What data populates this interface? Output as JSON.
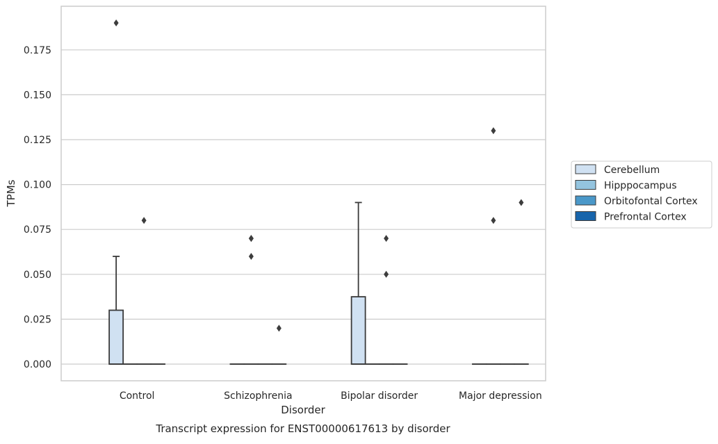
{
  "chart_data": {
    "type": "box",
    "title": "",
    "caption": "Transcript expression for ENST00000617613 by disorder",
    "xlabel": "Disorder",
    "ylabel": "TPMs",
    "ylim": [
      -0.0095,
      0.199
    ],
    "yticks": [
      "0.000",
      "0.025",
      "0.050",
      "0.075",
      "0.100",
      "0.125",
      "0.150",
      "0.175"
    ],
    "grid": "horizontal",
    "legend_position": "right",
    "categories": [
      "Control",
      "Schizophrenia",
      "Bipolar disorder",
      "Major depression"
    ],
    "series": [
      {
        "name": "Cerebellum",
        "color": "#d0e1f2",
        "boxes": [
          {
            "q1": 0,
            "median": 0,
            "q3": 0.03,
            "whisker_low": 0,
            "whisker_high": 0.06,
            "outliers": [
              0.19
            ]
          },
          {
            "q1": 0,
            "median": 0,
            "q3": 0,
            "whisker_low": 0,
            "whisker_high": 0,
            "outliers": []
          },
          {
            "q1": 0,
            "median": 0,
            "q3": 0.0375,
            "whisker_low": 0,
            "whisker_high": 0.09,
            "outliers": []
          },
          {
            "q1": 0,
            "median": 0,
            "q3": 0,
            "whisker_low": 0,
            "whisker_high": 0,
            "outliers": []
          }
        ]
      },
      {
        "name": "Hipppocampus",
        "color": "#94c4df",
        "boxes": [
          {
            "q1": 0,
            "median": 0,
            "q3": 0,
            "whisker_low": 0,
            "whisker_high": 0,
            "outliers": []
          },
          {
            "q1": 0,
            "median": 0,
            "q3": 0,
            "whisker_low": 0,
            "whisker_high": 0,
            "outliers": [
              0.06,
              0.07,
              0.07
            ]
          },
          {
            "q1": 0,
            "median": 0,
            "q3": 0,
            "whisker_low": 0,
            "whisker_high": 0,
            "outliers": []
          },
          {
            "q1": 0,
            "median": 0,
            "q3": 0,
            "whisker_low": 0,
            "whisker_high": 0,
            "outliers": [
              0.08,
              0.13
            ]
          }
        ]
      },
      {
        "name": "Orbitofontal Cortex",
        "color": "#4a98c9",
        "boxes": [
          {
            "q1": 0,
            "median": 0,
            "q3": 0,
            "whisker_low": 0,
            "whisker_high": 0,
            "outliers": [
              0.08
            ]
          },
          {
            "q1": 0,
            "median": 0,
            "q3": 0,
            "whisker_low": 0,
            "whisker_high": 0,
            "outliers": []
          },
          {
            "q1": 0,
            "median": 0,
            "q3": 0,
            "whisker_low": 0,
            "whisker_high": 0,
            "outliers": [
              0.05,
              0.07
            ]
          },
          {
            "q1": 0,
            "median": 0,
            "q3": 0,
            "whisker_low": 0,
            "whisker_high": 0,
            "outliers": []
          }
        ]
      },
      {
        "name": "Prefrontal Cortex",
        "color": "#1764ab",
        "boxes": [
          {
            "q1": 0,
            "median": 0,
            "q3": 0,
            "whisker_low": 0,
            "whisker_high": 0,
            "outliers": []
          },
          {
            "q1": 0,
            "median": 0,
            "q3": 0,
            "whisker_low": 0,
            "whisker_high": 0,
            "outliers": [
              0.02
            ]
          },
          {
            "q1": 0,
            "median": 0,
            "q3": 0,
            "whisker_low": 0,
            "whisker_high": 0,
            "outliers": []
          },
          {
            "q1": 0,
            "median": 0,
            "q3": 0,
            "whisker_low": 0,
            "whisker_high": 0,
            "outliers": [
              0.09
            ]
          }
        ]
      }
    ]
  }
}
